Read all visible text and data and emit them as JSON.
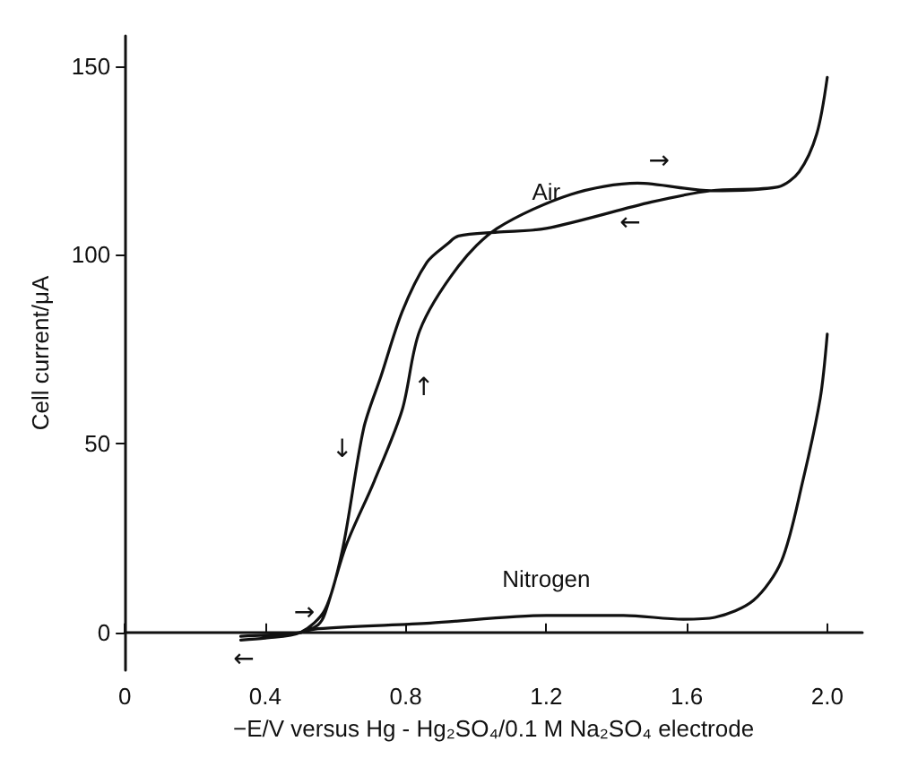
{
  "chart_data": {
    "type": "line",
    "xlabel": "−E/V versus Hg - Hg₂SO₄/0.1 M Na₂SO₄ electrode",
    "ylabel": "Cell current/μA",
    "xlim": [
      0,
      2.1
    ],
    "xticks": [
      0,
      0.4,
      0.8,
      1.2,
      1.6,
      {
        "value": 2,
        "label": "2.0"
      }
    ],
    "ylim": [
      -10,
      158
    ],
    "yticks": [
      0,
      50,
      100,
      150
    ],
    "grid": false,
    "legend": false,
    "marker": "none",
    "line_style": "solid",
    "series": [
      {
        "name": "Air",
        "color": "#111111",
        "x": [
          0.33,
          0.45,
          0.5,
          0.55,
          0.57,
          0.63,
          0.71,
          0.79,
          0.84,
          0.95,
          1.06,
          1.27,
          1.46,
          1.67,
          1.86,
          1.92,
          1.97,
          2.0,
          1.97,
          1.92,
          1.86,
          1.67,
          1.5,
          1.2,
          1.06,
          0.95,
          0.92,
          0.86,
          0.79,
          0.73,
          0.68,
          0.62,
          0.57,
          0.5,
          0.4,
          0.33
        ],
        "values": [
          -1,
          -0.5,
          0,
          2,
          5,
          23,
          40,
          59,
          80,
          97,
          107,
          116,
          119,
          117,
          118,
          122,
          132,
          147,
          132,
          122,
          118,
          117,
          114,
          107,
          106,
          105,
          103,
          98,
          85,
          68,
          54,
          22,
          6,
          0,
          -1.5,
          -2
        ]
      },
      {
        "name": "Nitrogen",
        "color": "#111111",
        "x": [
          0.5,
          0.55,
          0.87,
          1.2,
          1.42,
          1.59,
          1.68,
          1.79,
          1.87,
          1.93,
          1.98,
          2.0
        ],
        "values": [
          0,
          1,
          2.5,
          4.5,
          4.5,
          3.5,
          4,
          8.5,
          19,
          40,
          62,
          79
        ]
      }
    ],
    "annotations": [
      {
        "text": "→",
        "x": 1.46,
        "y": 119
      },
      {
        "text": "←",
        "x": 1.5,
        "y": 114
      },
      {
        "text": "↑",
        "x": 0.79,
        "y": 59
      },
      {
        "text": "↓",
        "x": 0.68,
        "y": 54
      },
      {
        "text": "→",
        "x": 0.45,
        "y": -0.5
      },
      {
        "text": "←",
        "x": 0.4,
        "y": -1.5
      }
    ]
  }
}
